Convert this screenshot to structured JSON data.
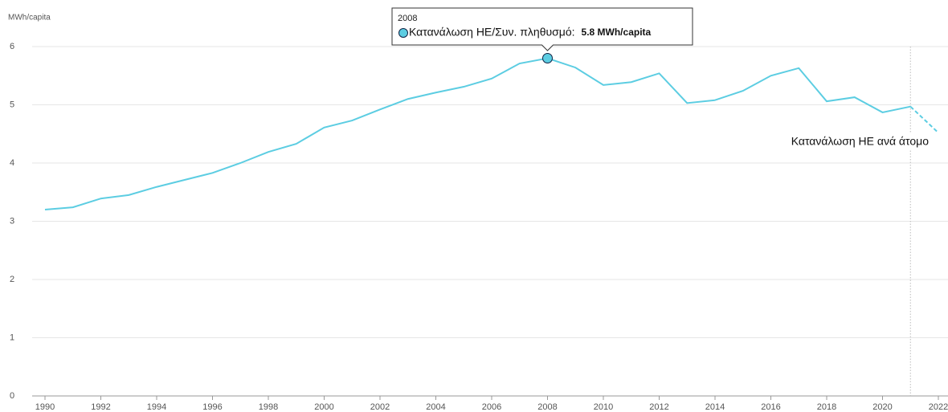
{
  "chart_data": {
    "type": "line",
    "y_axis_label": "MWh/capita",
    "x": [
      1990,
      1991,
      1992,
      1993,
      1994,
      1995,
      1996,
      1997,
      1998,
      1999,
      2000,
      2001,
      2002,
      2003,
      2004,
      2005,
      2006,
      2007,
      2008,
      2009,
      2010,
      2011,
      2012,
      2013,
      2014,
      2015,
      2016,
      2017,
      2018,
      2019,
      2020,
      2021,
      2022
    ],
    "series": [
      {
        "name": "Κατανάλωση ΗΕ ανά άτομο",
        "color": "#5ccde2",
        "values": [
          3.2,
          3.24,
          3.39,
          3.45,
          3.59,
          3.71,
          3.83,
          4.0,
          4.19,
          4.33,
          4.61,
          4.73,
          4.92,
          5.1,
          5.21,
          5.31,
          5.45,
          5.71,
          5.8,
          5.64,
          5.34,
          5.39,
          5.54,
          5.03,
          5.08,
          5.24,
          5.5,
          5.63,
          5.06,
          5.13,
          4.87,
          4.97,
          4.52
        ]
      }
    ],
    "projection_x": 2021,
    "xlim": [
      1990,
      2022
    ],
    "ylim": [
      0,
      6
    ],
    "xticks": [
      1990,
      1992,
      1994,
      1996,
      1998,
      2000,
      2002,
      2004,
      2006,
      2008,
      2010,
      2012,
      2014,
      2016,
      2018,
      2020,
      2022
    ],
    "yticks": [
      0,
      1,
      2,
      3,
      4,
      5,
      6
    ],
    "grid": true,
    "tooltip": {
      "x": 2008,
      "label": "Κατανάλωση ΗΕ/Συν. πληθυσμό:",
      "value": 5.8,
      "value_label": "5.8 MWh/capita"
    }
  }
}
